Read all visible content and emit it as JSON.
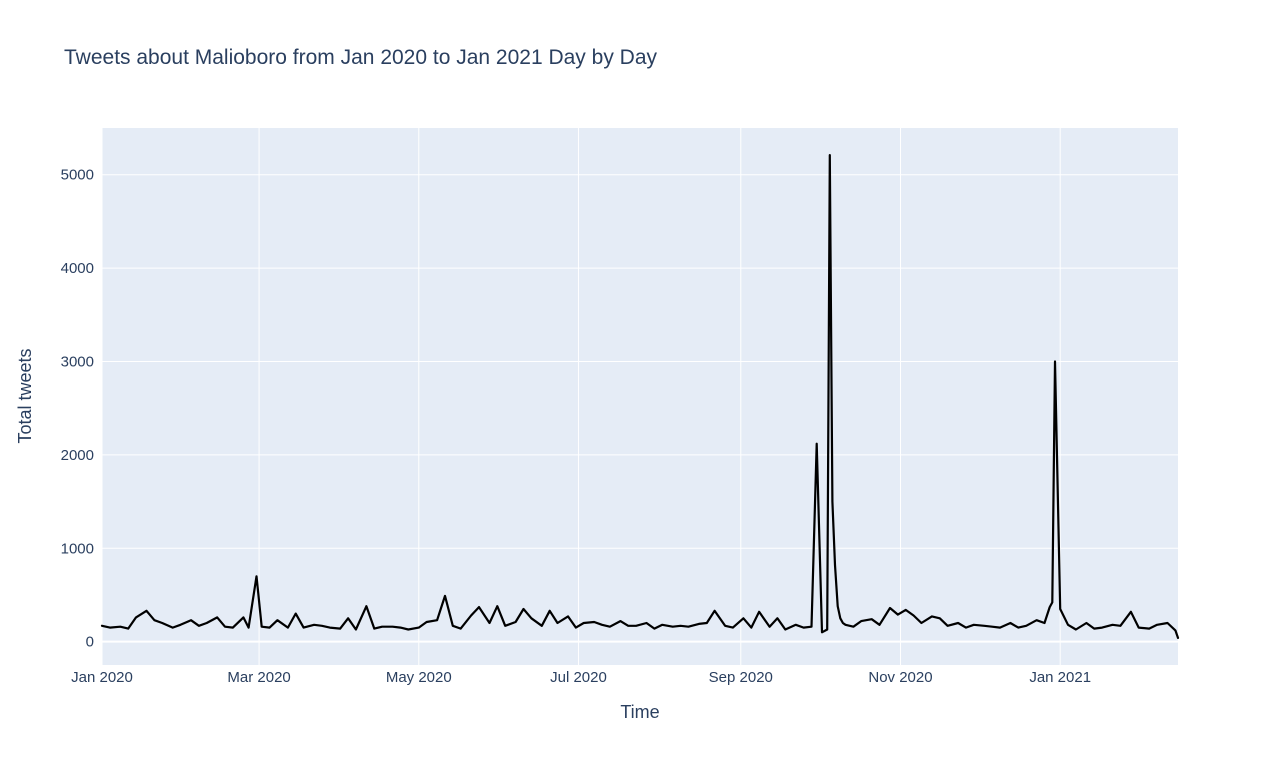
{
  "chart_data": {
    "type": "line",
    "title": "Tweets about Malioboro from Jan 2020 to Jan 2021 Day by Day",
    "xlabel": "Time",
    "ylabel": "Total tweets",
    "x_range": [
      "2020-01-01",
      "2021-02-15"
    ],
    "ylim": [
      -250,
      5500
    ],
    "x_ticks": [
      {
        "date": "2020-01-01",
        "label": "Jan 2020"
      },
      {
        "date": "2020-03-01",
        "label": "Mar 2020"
      },
      {
        "date": "2020-05-01",
        "label": "May 2020"
      },
      {
        "date": "2020-07-01",
        "label": "Jul 2020"
      },
      {
        "date": "2020-09-01",
        "label": "Sep 2020"
      },
      {
        "date": "2020-11-01",
        "label": "Nov 2020"
      },
      {
        "date": "2021-01-01",
        "label": "Jan 2021"
      }
    ],
    "y_ticks": [
      0,
      1000,
      2000,
      3000,
      4000,
      5000
    ],
    "grid": true,
    "line_color": "#000000",
    "series": [
      {
        "x": [
          "2020-01-01",
          "2020-01-04",
          "2020-01-08",
          "2020-01-11",
          "2020-01-14",
          "2020-01-18",
          "2020-01-21",
          "2020-01-24",
          "2020-01-28",
          "2020-01-31",
          "2020-02-04",
          "2020-02-07",
          "2020-02-10",
          "2020-02-14",
          "2020-02-17",
          "2020-02-20",
          "2020-02-24",
          "2020-02-26",
          "2020-02-29",
          "2020-03-02",
          "2020-03-05",
          "2020-03-08",
          "2020-03-12",
          "2020-03-15",
          "2020-03-18",
          "2020-03-22",
          "2020-03-25",
          "2020-03-28",
          "2020-04-01",
          "2020-04-04",
          "2020-04-07",
          "2020-04-11",
          "2020-04-14",
          "2020-04-17",
          "2020-04-21",
          "2020-04-24",
          "2020-04-27",
          "2020-05-01",
          "2020-05-04",
          "2020-05-08",
          "2020-05-11",
          "2020-05-14",
          "2020-05-17",
          "2020-05-21",
          "2020-05-24",
          "2020-05-28",
          "2020-05-31",
          "2020-06-03",
          "2020-06-07",
          "2020-06-10",
          "2020-06-13",
          "2020-06-17",
          "2020-06-20",
          "2020-06-23",
          "2020-06-27",
          "2020-06-30",
          "2020-07-03",
          "2020-07-07",
          "2020-07-10",
          "2020-07-13",
          "2020-07-17",
          "2020-07-20",
          "2020-07-23",
          "2020-07-27",
          "2020-07-30",
          "2020-08-02",
          "2020-08-06",
          "2020-08-09",
          "2020-08-12",
          "2020-08-16",
          "2020-08-19",
          "2020-08-22",
          "2020-08-26",
          "2020-08-29",
          "2020-09-02",
          "2020-09-05",
          "2020-09-08",
          "2020-09-12",
          "2020-09-15",
          "2020-09-18",
          "2020-09-22",
          "2020-09-25",
          "2020-09-28",
          "2020-09-30",
          "2020-10-02",
          "2020-10-04",
          "2020-10-05",
          "2020-10-06",
          "2020-10-07",
          "2020-10-08",
          "2020-10-09",
          "2020-10-10",
          "2020-10-11",
          "2020-10-14",
          "2020-10-17",
          "2020-10-21",
          "2020-10-24",
          "2020-10-28",
          "2020-10-31",
          "2020-11-03",
          "2020-11-06",
          "2020-11-09",
          "2020-11-13",
          "2020-11-16",
          "2020-11-19",
          "2020-11-23",
          "2020-11-26",
          "2020-11-29",
          "2020-12-03",
          "2020-12-06",
          "2020-12-09",
          "2020-12-13",
          "2020-12-16",
          "2020-12-19",
          "2020-12-23",
          "2020-12-26",
          "2020-12-28",
          "2020-12-29",
          "2020-12-30",
          "2021-01-01",
          "2021-01-04",
          "2021-01-07",
          "2021-01-11",
          "2021-01-14",
          "2021-01-17",
          "2021-01-21",
          "2021-01-24",
          "2021-01-28",
          "2021-01-31",
          "2021-02-04",
          "2021-02-07",
          "2021-02-11",
          "2021-02-14",
          "2021-02-15"
        ],
        "values": [
          170,
          150,
          160,
          140,
          260,
          330,
          230,
          200,
          150,
          180,
          230,
          170,
          200,
          260,
          160,
          150,
          260,
          150,
          700,
          160,
          150,
          230,
          150,
          300,
          150,
          180,
          170,
          150,
          140,
          250,
          130,
          380,
          140,
          160,
          160,
          150,
          130,
          150,
          210,
          230,
          490,
          170,
          140,
          280,
          370,
          200,
          380,
          170,
          210,
          350,
          250,
          170,
          330,
          200,
          270,
          150,
          200,
          210,
          180,
          160,
          220,
          170,
          170,
          200,
          140,
          180,
          160,
          170,
          160,
          190,
          200,
          330,
          170,
          150,
          250,
          150,
          320,
          160,
          250,
          130,
          180,
          150,
          160,
          2120,
          100,
          130,
          5210,
          1500,
          820,
          380,
          250,
          200,
          180,
          160,
          220,
          240,
          180,
          360,
          290,
          340,
          280,
          200,
          270,
          250,
          170,
          200,
          150,
          180,
          170,
          160,
          150,
          200,
          150,
          170,
          230,
          200,
          370,
          420,
          3000,
          350,
          180,
          130,
          200,
          140,
          150,
          180,
          170,
          320,
          150,
          140,
          180,
          200,
          120,
          40
        ]
      }
    ]
  }
}
